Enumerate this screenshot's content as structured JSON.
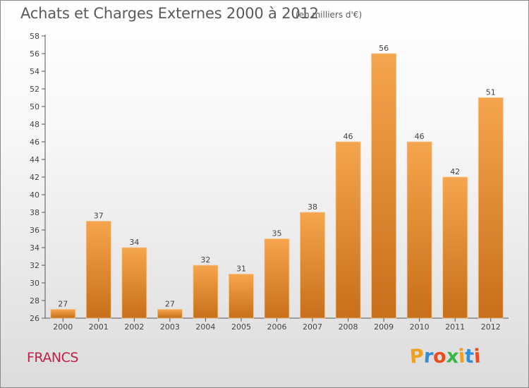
{
  "header": {
    "title": "Achats et Charges Externes 2000 à 2012",
    "unit": "(en milliers d'€)"
  },
  "footer": {
    "currency_label": "FRANCS",
    "brand": {
      "letters": [
        "P",
        "r",
        "o",
        "x",
        "i",
        "t",
        "i"
      ],
      "colors": [
        "#f0a020",
        "#2f8fd8",
        "#e84c1f",
        "#3ab54a",
        "#f0a020",
        "#2f8fd8",
        "#e84c1f"
      ]
    }
  },
  "colors": {
    "bar_top": "#f5a54d",
    "bar_bottom": "#c76f1a",
    "axis": "#555555",
    "grid": "#c8c8c8",
    "text": "#444444"
  },
  "chart_data": {
    "type": "bar",
    "categories": [
      "2000",
      "2001",
      "2002",
      "2003",
      "2004",
      "2005",
      "2006",
      "2007",
      "2008",
      "2009",
      "2010",
      "2011",
      "2012"
    ],
    "values": [
      27,
      37,
      34,
      27,
      32,
      31,
      35,
      38,
      46,
      56,
      46,
      42,
      51
    ],
    "title": "Achats et Charges Externes 2000 à 2012",
    "ylim": [
      26,
      58
    ],
    "ytick_step": 2,
    "grid": false,
    "data_labels": true
  }
}
